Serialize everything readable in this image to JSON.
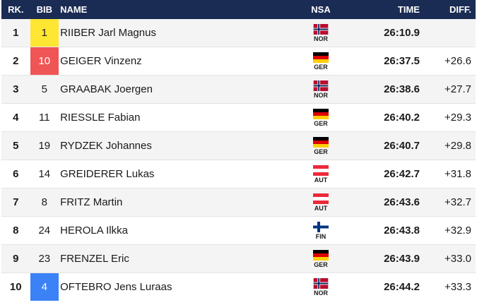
{
  "headers": {
    "rank": "RK.",
    "bib": "BIB",
    "name": "NAME",
    "nsa": "NSA",
    "time": "TIME",
    "diff": "DIFF."
  },
  "colors": {
    "header_bg": "#1b2c54",
    "bib_yellow": "#ffe633",
    "bib_red": "#f05555",
    "bib_blue": "#3b82f6"
  },
  "rows": [
    {
      "rank": "1",
      "bib": "1",
      "bib_color": "yellow",
      "name": "RIIBER Jarl Magnus",
      "nsa": "NOR",
      "flag": "norway-flag-icon",
      "time": "26:10.9",
      "diff": ""
    },
    {
      "rank": "2",
      "bib": "10",
      "bib_color": "red",
      "name": "GEIGER Vinzenz",
      "nsa": "GER",
      "flag": "germany-flag-icon",
      "time": "26:37.5",
      "diff": "+26.6"
    },
    {
      "rank": "3",
      "bib": "5",
      "bib_color": "",
      "name": "GRAABAK Joergen",
      "nsa": "NOR",
      "flag": "norway-flag-icon",
      "time": "26:38.6",
      "diff": "+27.7"
    },
    {
      "rank": "4",
      "bib": "11",
      "bib_color": "",
      "name": "RIESSLE Fabian",
      "nsa": "GER",
      "flag": "germany-flag-icon",
      "time": "26:40.2",
      "diff": "+29.3"
    },
    {
      "rank": "5",
      "bib": "19",
      "bib_color": "",
      "name": "RYDZEK Johannes",
      "nsa": "GER",
      "flag": "germany-flag-icon",
      "time": "26:40.7",
      "diff": "+29.8"
    },
    {
      "rank": "6",
      "bib": "14",
      "bib_color": "",
      "name": "GREIDERER Lukas",
      "nsa": "AUT",
      "flag": "austria-flag-icon",
      "time": "26:42.7",
      "diff": "+31.8"
    },
    {
      "rank": "7",
      "bib": "8",
      "bib_color": "",
      "name": "FRITZ Martin",
      "nsa": "AUT",
      "flag": "austria-flag-icon",
      "time": "26:43.6",
      "diff": "+32.7"
    },
    {
      "rank": "8",
      "bib": "24",
      "bib_color": "",
      "name": "HEROLA Ilkka",
      "nsa": "FIN",
      "flag": "finland-flag-icon",
      "time": "26:43.8",
      "diff": "+32.9"
    },
    {
      "rank": "9",
      "bib": "23",
      "bib_color": "",
      "name": "FRENZEL Eric",
      "nsa": "GER",
      "flag": "germany-flag-icon",
      "time": "26:43.9",
      "diff": "+33.0"
    },
    {
      "rank": "10",
      "bib": "4",
      "bib_color": "blue",
      "name": "OFTEBRO Jens Luraas",
      "nsa": "NOR",
      "flag": "norway-flag-icon",
      "time": "26:44.2",
      "diff": "+33.3"
    }
  ]
}
